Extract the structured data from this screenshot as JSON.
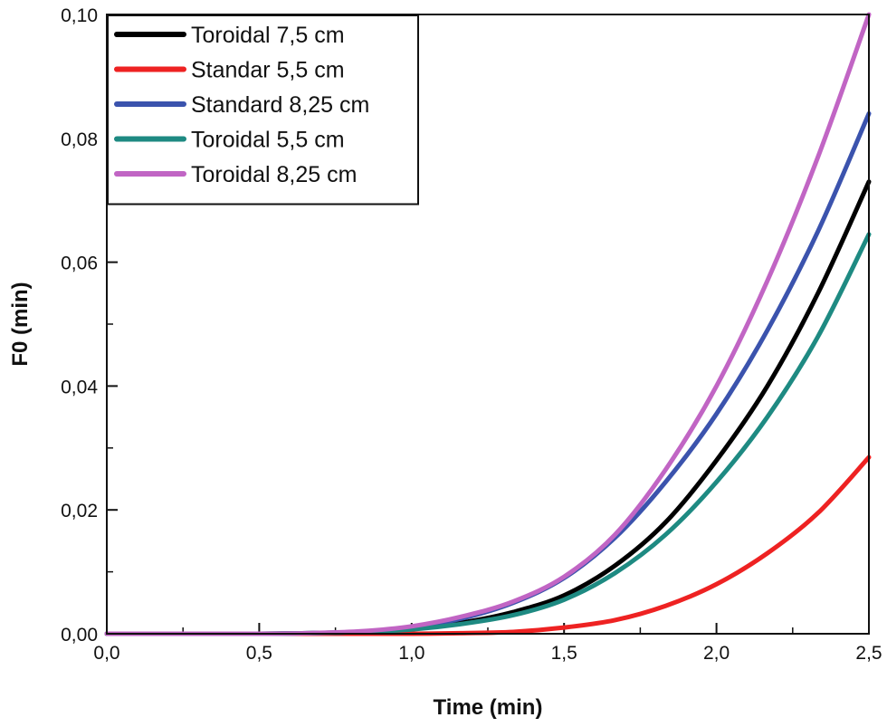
{
  "chart_data": {
    "type": "line",
    "title": "",
    "xlabel": "Time (min)",
    "ylabel": "F0 (min)",
    "xlim": [
      0,
      2.5
    ],
    "ylim": [
      0,
      0.1
    ],
    "x_ticks": [
      0,
      0.5,
      1.0,
      1.5,
      2.0,
      2.5
    ],
    "x_tick_labels": [
      "0,0",
      "0,5",
      "1,0",
      "1,5",
      "2,0",
      "2,5"
    ],
    "y_ticks": [
      0,
      0.02,
      0.04,
      0.06,
      0.08,
      0.1
    ],
    "y_tick_labels": [
      "0,00",
      "0,02",
      "0,04",
      "0,06",
      "0,08",
      "0,10"
    ],
    "legend_position": "top-left",
    "x": [
      0,
      0.167,
      0.333,
      0.5,
      0.667,
      0.833,
      1.0,
      1.167,
      1.333,
      1.5,
      1.667,
      1.833,
      2.0,
      2.167,
      2.333,
      2.5
    ],
    "series": [
      {
        "name": "Toroidal 7,5 cm",
        "color": "#000000",
        "values": [
          0,
          0,
          0,
          0,
          0.0001,
          0.0003,
          0.0008,
          0.0018,
          0.0035,
          0.0062,
          0.011,
          0.018,
          0.028,
          0.04,
          0.055,
          0.073
        ]
      },
      {
        "name": "Standar 5,5 cm",
        "color": "#ee2222",
        "values": [
          0,
          0,
          0,
          0,
          0,
          0,
          0,
          0.0001,
          0.0003,
          0.001,
          0.0022,
          0.0045,
          0.008,
          0.013,
          0.0195,
          0.0285
        ]
      },
      {
        "name": "Standard 8,25 cm",
        "color": "#3b53ad",
        "values": [
          0,
          0,
          0,
          0,
          0.0001,
          0.0003,
          0.001,
          0.0025,
          0.005,
          0.009,
          0.0155,
          0.0245,
          0.0355,
          0.049,
          0.065,
          0.084
        ]
      },
      {
        "name": "Toroidal 5,5 cm",
        "color": "#1e8a82",
        "values": [
          0,
          0,
          0,
          0,
          0.0001,
          0.0003,
          0.0007,
          0.0016,
          0.003,
          0.0055,
          0.0098,
          0.016,
          0.0245,
          0.035,
          0.048,
          0.0645
        ]
      },
      {
        "name": "Toroidal 8,25 cm",
        "color": "#c165c4",
        "values": [
          0,
          0,
          0,
          0,
          0.0001,
          0.0004,
          0.0012,
          0.0028,
          0.0052,
          0.0092,
          0.016,
          0.0265,
          0.04,
          0.057,
          0.077,
          0.1
        ]
      }
    ]
  }
}
